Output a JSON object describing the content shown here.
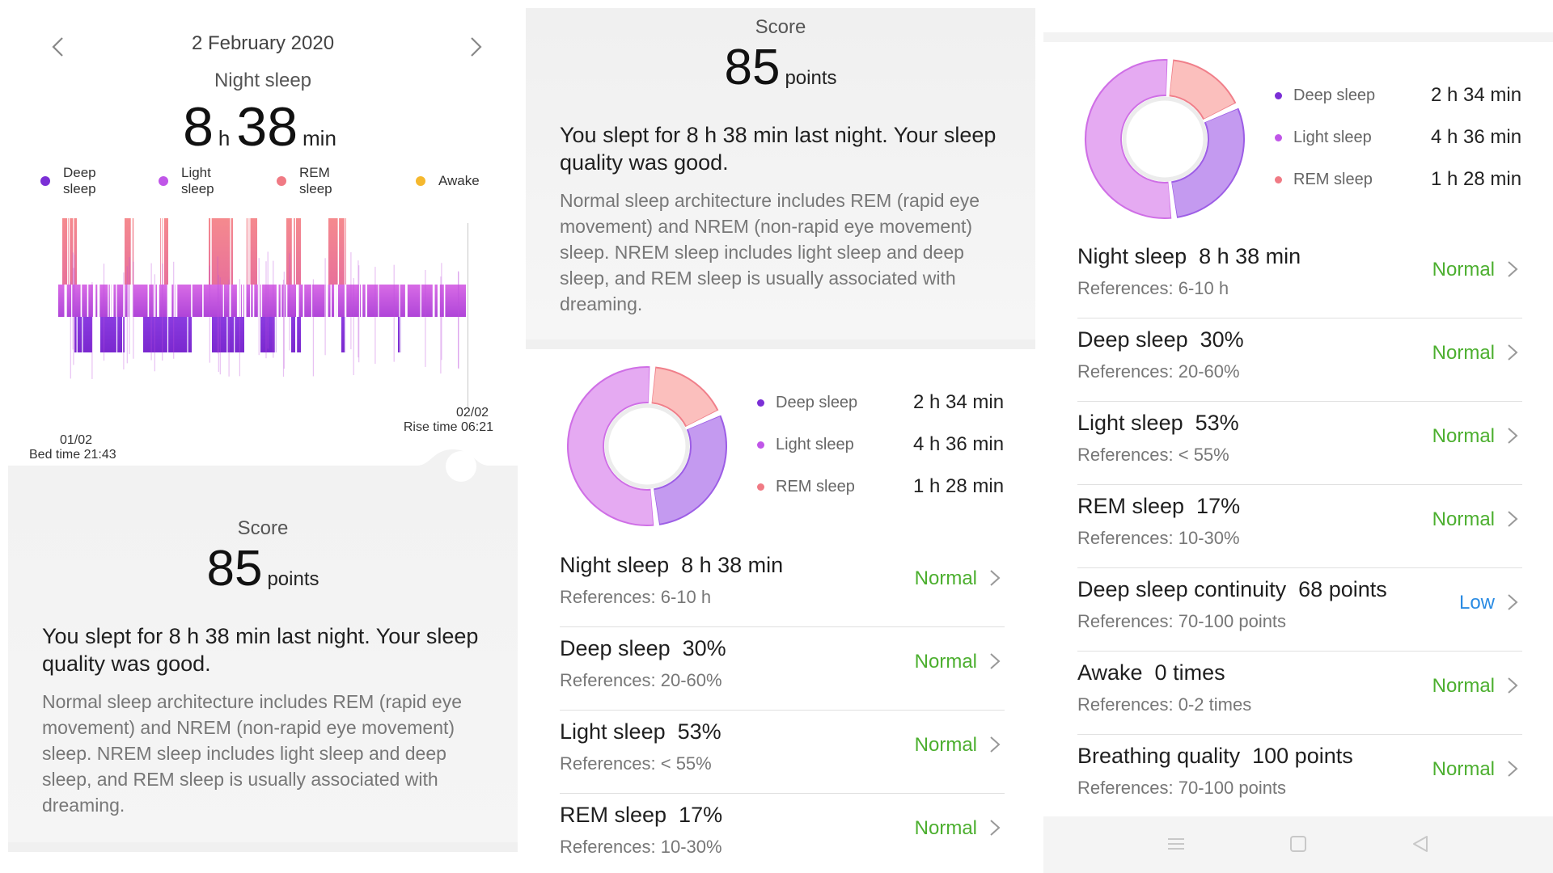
{
  "panel1": {
    "date": "2 February 2020",
    "title": "Night sleep",
    "duration": {
      "hours": "8",
      "h_unit": "h",
      "minutes": "38",
      "min_unit": "min"
    },
    "legend": [
      {
        "label": "Deep sleep",
        "color": "#7b2fd6"
      },
      {
        "label": "Light sleep",
        "color": "#c056e8"
      },
      {
        "label": "REM sleep",
        "color": "#f07a84"
      },
      {
        "label": "Awake",
        "color": "#f5b82e"
      }
    ],
    "bed": {
      "date": "01/02",
      "label": "Bed time 21:43"
    },
    "rise": {
      "date": "02/02",
      "label": "Rise time 06:21"
    },
    "score": {
      "label": "Score",
      "value": "85",
      "unit": "points"
    },
    "summary": "You slept for 8 h 38 min last night. Your sleep quality was good.",
    "description": "Normal sleep architecture includes REM (rapid eye movement) and NREM (non-rapid eye movement) sleep. NREM sleep includes light sleep and deep sleep, and REM sleep is usually associated with dreaming."
  },
  "breakdown": [
    {
      "label": "Deep sleep",
      "value": "2 h 34 min",
      "color": "#7b2fd6",
      "percent": 30
    },
    {
      "label": "Light sleep",
      "value": "4 h 36 min",
      "color": "#c056e8",
      "percent": 53
    },
    {
      "label": "REM sleep",
      "value": "1 h 28 min",
      "color": "#f07a84",
      "percent": 17
    }
  ],
  "metrics": [
    {
      "title": "Night sleep  8 h 38 min",
      "reference": "References: 6-10 h",
      "status": "Normal"
    },
    {
      "title": "Deep sleep  30%",
      "reference": "References: 20-60%",
      "status": "Normal"
    },
    {
      "title": "Light sleep  53%",
      "reference": "References: < 55%",
      "status": "Normal"
    },
    {
      "title": "REM sleep  17%",
      "reference": "References: 10-30%",
      "status": "Normal"
    },
    {
      "title": "Deep sleep continuity  68 points",
      "reference": "References: 70-100 points",
      "status": "Low"
    },
    {
      "title": "Awake  0 times",
      "reference": "References: 0-2 times",
      "status": "Normal"
    },
    {
      "title": "Breathing quality  100 points",
      "reference": "References: 70-100 points",
      "status": "Normal"
    }
  ],
  "colors": {
    "normal": "#4caf2f",
    "low": "#2a8be3",
    "donut_deep": "#c49af0",
    "donut_light": "#e5aaf2",
    "donut_rem": "#fbbfbd"
  }
}
